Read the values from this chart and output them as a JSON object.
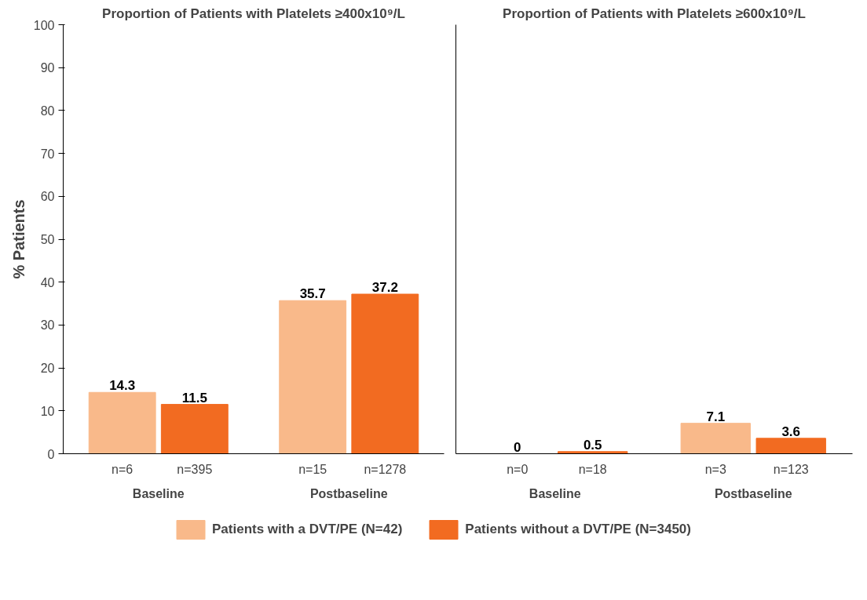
{
  "chart_data": [
    {
      "type": "bar",
      "title": "Proportion of Patients with Platelets ≥400x10⁹/L",
      "ylabel": "% Patients",
      "categories": [
        "Baseline",
        "Postbaseline"
      ],
      "series": [
        {
          "name": "Patients with a DVT/PE (N=42)",
          "color": "#f9b98a",
          "values": [
            14.3,
            35.7
          ]
        },
        {
          "name": "Patients without a DVT/PE (N=3450)",
          "color": "#f26b21",
          "values": [
            11.5,
            37.2
          ]
        }
      ],
      "annotations": [
        "n=6",
        "n=395",
        "n=15",
        "n=1278"
      ],
      "ylim": [
        0,
        100
      ],
      "yticks": [
        0,
        10,
        20,
        30,
        40,
        50,
        60,
        70,
        80,
        90,
        100
      ],
      "grid": false,
      "data_labels": true,
      "legend": "bottom"
    },
    {
      "type": "bar",
      "title": "Proportion of Patients with Platelets ≥600x10⁹/L",
      "categories": [
        "Baseline",
        "Postbaseline"
      ],
      "series": [
        {
          "color": "#f9b98a",
          "values": [
            0,
            7.1
          ]
        },
        {
          "color": "#f26b21",
          "values": [
            0.5,
            3.6
          ]
        }
      ],
      "annotations": [
        "n=0",
        "n=18",
        "n=3",
        "n=123"
      ],
      "ylim": [
        0,
        100
      ],
      "yticks": [
        0,
        10,
        20,
        30,
        40,
        50,
        60,
        70,
        80,
        90,
        100
      ],
      "grid": false,
      "data_labels": true,
      "tick_labels": "x"
    }
  ]
}
